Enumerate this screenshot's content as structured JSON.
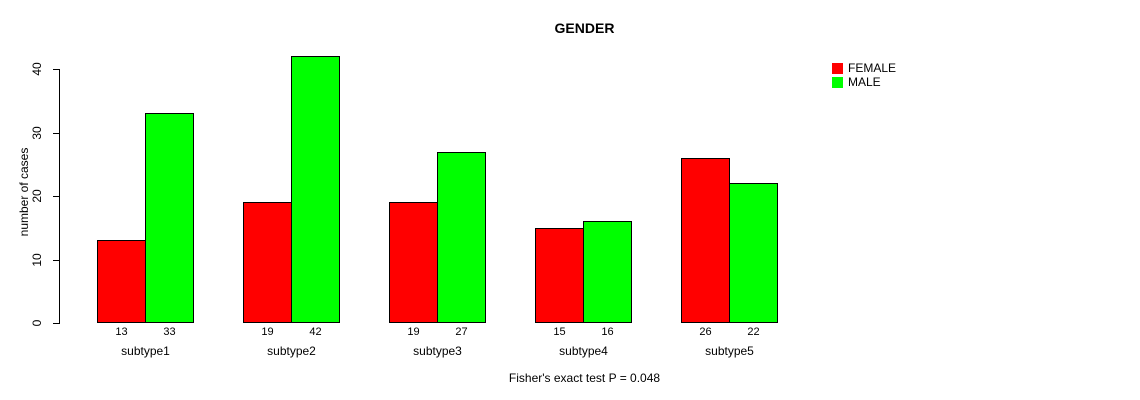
{
  "chart_data": {
    "type": "bar",
    "title": "GENDER",
    "ylabel": "number of cases",
    "xlabel": "",
    "categories": [
      "subtype1",
      "subtype2",
      "subtype3",
      "subtype4",
      "subtype5"
    ],
    "series": [
      {
        "name": "FEMALE",
        "color": "#ff0000",
        "values": [
          13,
          19,
          19,
          15,
          26
        ]
      },
      {
        "name": "MALE",
        "color": "#00ff00",
        "values": [
          33,
          42,
          27,
          16,
          22
        ]
      }
    ],
    "yticks": [
      0,
      10,
      20,
      30,
      40
    ],
    "ylim": [
      0,
      40
    ],
    "grid": false,
    "legend_position": "topright",
    "bar_labels_shown": true,
    "footnote": "Fisher's exact test P = 0.048"
  },
  "legend": {
    "items": [
      {
        "label": "FEMALE",
        "color": "#ff0000"
      },
      {
        "label": "MALE",
        "color": "#00ff00"
      }
    ]
  }
}
